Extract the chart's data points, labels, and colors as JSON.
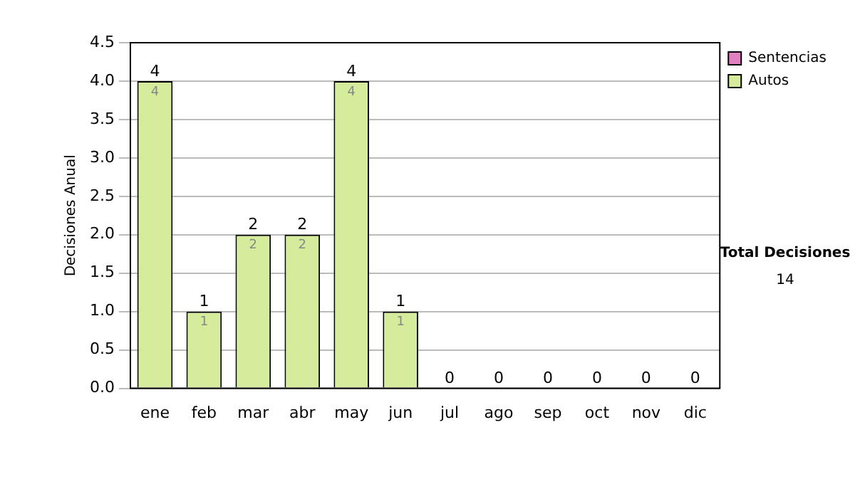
{
  "chart_data": {
    "type": "bar",
    "ylabel": "Decisiones Anual",
    "categories": [
      "ene",
      "feb",
      "mar",
      "abr",
      "may",
      "jun",
      "jul",
      "ago",
      "sep",
      "oct",
      "nov",
      "dic"
    ],
    "series": [
      {
        "name": "Sentencias",
        "color": "#e080c0",
        "values": [
          0,
          0,
          0,
          0,
          0,
          0,
          0,
          0,
          0,
          0,
          0,
          0
        ]
      },
      {
        "name": "Autos",
        "color": "#d4ec9c",
        "values": [
          4,
          1,
          2,
          2,
          4,
          1,
          0,
          0,
          0,
          0,
          0,
          0
        ],
        "value_labels": [
          "4",
          "1",
          "2",
          "2",
          "4",
          "1",
          null,
          null,
          null,
          null,
          null,
          null
        ]
      }
    ],
    "stacked": true,
    "totals": [
      "4",
      "1",
      "2",
      "2",
      "4",
      "1",
      "0",
      "0",
      "0",
      "0",
      "0",
      "0"
    ],
    "ylim": [
      0,
      4.5
    ],
    "yticks": [
      {
        "value": 0,
        "label": "0.0"
      },
      {
        "value": 0.5,
        "label": "0.5"
      },
      {
        "value": 1,
        "label": "1.0"
      },
      {
        "value": 1.5,
        "label": "1.5"
      },
      {
        "value": 2,
        "label": "2.0"
      },
      {
        "value": 2.5,
        "label": "2.5"
      },
      {
        "value": 3,
        "label": "3.0"
      },
      {
        "value": 3.5,
        "label": "3.5"
      },
      {
        "value": 4,
        "label": "4.0"
      },
      {
        "value": 4.5,
        "label": "4.5"
      }
    ],
    "grid": "y",
    "legend": "right",
    "annotations": [
      "Total Decisiones",
      "14"
    ]
  }
}
